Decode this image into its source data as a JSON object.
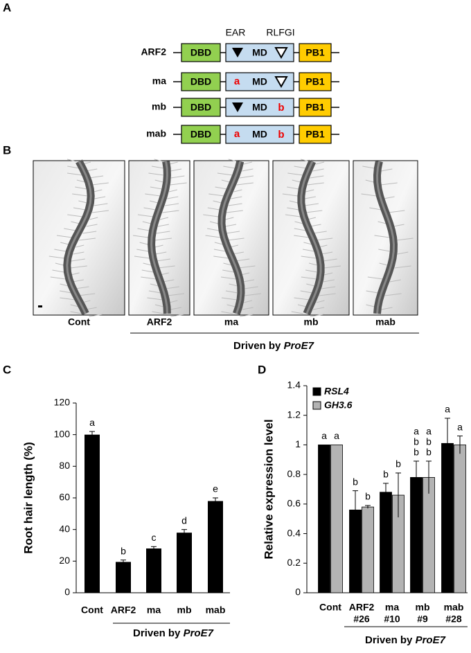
{
  "panel_a": {
    "label": "A",
    "headers": [
      "EAR",
      "RLFGI"
    ],
    "rows": [
      {
        "name": "ARF2",
        "ear": null,
        "rlfgi": null
      },
      {
        "name": "ma",
        "ear": "a",
        "rlfgi": null
      },
      {
        "name": "mb",
        "ear": null,
        "rlfgi": "b"
      },
      {
        "name": "mab",
        "ear": "a",
        "rlfgi": "b"
      }
    ],
    "domains": [
      "DBD",
      "MD",
      "PB1"
    ]
  },
  "panel_b": {
    "label": "B",
    "images": [
      "Cont",
      "ARF2",
      "ma",
      "mb",
      "mab"
    ],
    "caption": {
      "text": "Driven by",
      "italic": "ProE7"
    }
  },
  "chart_data": [
    {
      "type": "bar",
      "panel": "C",
      "ylabel": "Root hair length (%)",
      "categories": [
        "Cont",
        "ARF2",
        "ma",
        "mb",
        "mab"
      ],
      "values": [
        100,
        19.5,
        28,
        38,
        58
      ],
      "errors": [
        2,
        1.2,
        1.2,
        2,
        2
      ],
      "annotations": [
        "a",
        "b",
        "c",
        "d",
        "e"
      ],
      "color": "#000000",
      "ylim": [
        0,
        120
      ],
      "yticks": [
        0,
        20,
        40,
        60,
        80,
        100,
        120
      ],
      "caption": {
        "text": "Driven by",
        "italic": "ProE7"
      }
    },
    {
      "type": "grouped_bar",
      "panel": "D",
      "ylabel": "Relative expression level",
      "categories": [
        [
          "Cont"
        ],
        [
          "ARF2",
          "#26"
        ],
        [
          "ma",
          "#10"
        ],
        [
          "mb",
          "#9"
        ],
        [
          "mab",
          "#28"
        ]
      ],
      "series": [
        {
          "name": "RSL4",
          "color": "#000000",
          "values": [
            1,
            0.56,
            0.68,
            0.78,
            1.01
          ],
          "errors": [
            0,
            0.13,
            0.06,
            0.11,
            0.17
          ],
          "annotations": [
            [
              "a"
            ],
            [
              "b"
            ],
            [
              "b"
            ],
            [
              "a",
              "b",
              "b"
            ],
            [
              "a"
            ]
          ]
        },
        {
          "name": "GH3.6",
          "color": "#b3b3b3",
          "values": [
            1,
            0.58,
            0.66,
            0.78,
            1.0
          ],
          "errors": [
            0,
            0.01,
            0.15,
            0.11,
            0.06
          ],
          "annotations": [
            [
              "a"
            ],
            [
              "b"
            ],
            [
              "b"
            ],
            [
              "a",
              "b",
              "b"
            ],
            [
              "a"
            ]
          ]
        }
      ],
      "ylim": [
        0,
        1.4
      ],
      "yticks": [
        0,
        0.2,
        0.4,
        0.6,
        0.8,
        1,
        1.2,
        1.4
      ],
      "caption": {
        "text": "Driven by",
        "italic": "ProE7"
      }
    }
  ]
}
